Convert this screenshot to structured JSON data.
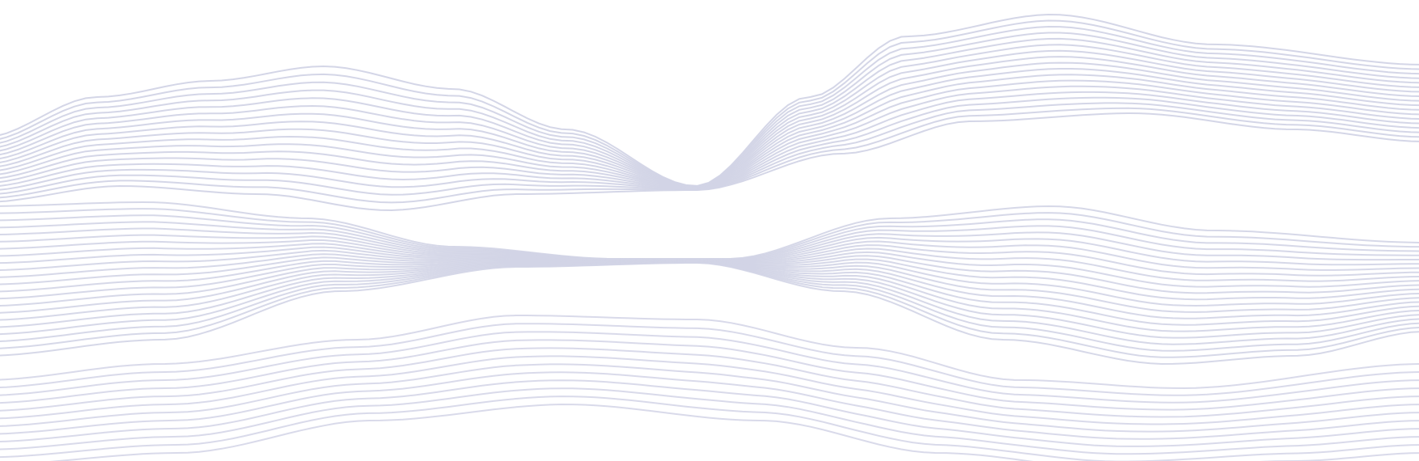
{
  "background": {
    "color": "#ffffff",
    "line_color": "#d2d4e6",
    "icon": "abstract-wave-lines"
  }
}
